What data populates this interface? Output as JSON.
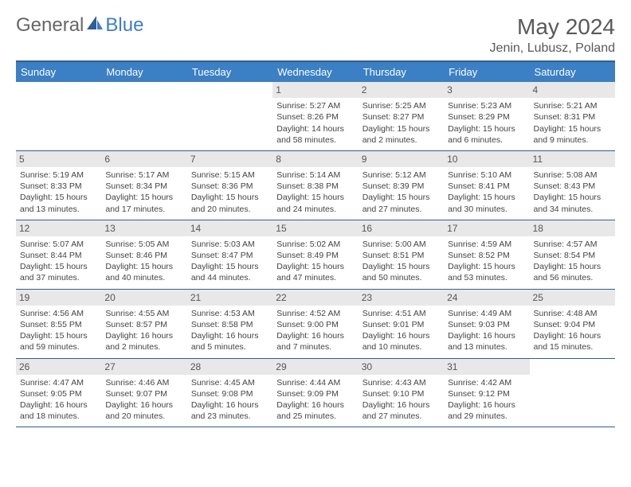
{
  "brand": {
    "part1": "General",
    "part2": "Blue"
  },
  "title": "May 2024",
  "location": "Jenin, Lubusz, Poland",
  "colors": {
    "header_bg": "#3b7fc4",
    "header_border": "#2e5e96",
    "text": "#3a3a3a",
    "daynum_bg": "#e8e8e8"
  },
  "weekdays": [
    "Sunday",
    "Monday",
    "Tuesday",
    "Wednesday",
    "Thursday",
    "Friday",
    "Saturday"
  ],
  "grid": [
    [
      null,
      null,
      null,
      {
        "n": "1",
        "sr": "5:27 AM",
        "ss": "8:26 PM",
        "dl": "14 hours and 58 minutes."
      },
      {
        "n": "2",
        "sr": "5:25 AM",
        "ss": "8:27 PM",
        "dl": "15 hours and 2 minutes."
      },
      {
        "n": "3",
        "sr": "5:23 AM",
        "ss": "8:29 PM",
        "dl": "15 hours and 6 minutes."
      },
      {
        "n": "4",
        "sr": "5:21 AM",
        "ss": "8:31 PM",
        "dl": "15 hours and 9 minutes."
      }
    ],
    [
      {
        "n": "5",
        "sr": "5:19 AM",
        "ss": "8:33 PM",
        "dl": "15 hours and 13 minutes."
      },
      {
        "n": "6",
        "sr": "5:17 AM",
        "ss": "8:34 PM",
        "dl": "15 hours and 17 minutes."
      },
      {
        "n": "7",
        "sr": "5:15 AM",
        "ss": "8:36 PM",
        "dl": "15 hours and 20 minutes."
      },
      {
        "n": "8",
        "sr": "5:14 AM",
        "ss": "8:38 PM",
        "dl": "15 hours and 24 minutes."
      },
      {
        "n": "9",
        "sr": "5:12 AM",
        "ss": "8:39 PM",
        "dl": "15 hours and 27 minutes."
      },
      {
        "n": "10",
        "sr": "5:10 AM",
        "ss": "8:41 PM",
        "dl": "15 hours and 30 minutes."
      },
      {
        "n": "11",
        "sr": "5:08 AM",
        "ss": "8:43 PM",
        "dl": "15 hours and 34 minutes."
      }
    ],
    [
      {
        "n": "12",
        "sr": "5:07 AM",
        "ss": "8:44 PM",
        "dl": "15 hours and 37 minutes."
      },
      {
        "n": "13",
        "sr": "5:05 AM",
        "ss": "8:46 PM",
        "dl": "15 hours and 40 minutes."
      },
      {
        "n": "14",
        "sr": "5:03 AM",
        "ss": "8:47 PM",
        "dl": "15 hours and 44 minutes."
      },
      {
        "n": "15",
        "sr": "5:02 AM",
        "ss": "8:49 PM",
        "dl": "15 hours and 47 minutes."
      },
      {
        "n": "16",
        "sr": "5:00 AM",
        "ss": "8:51 PM",
        "dl": "15 hours and 50 minutes."
      },
      {
        "n": "17",
        "sr": "4:59 AM",
        "ss": "8:52 PM",
        "dl": "15 hours and 53 minutes."
      },
      {
        "n": "18",
        "sr": "4:57 AM",
        "ss": "8:54 PM",
        "dl": "15 hours and 56 minutes."
      }
    ],
    [
      {
        "n": "19",
        "sr": "4:56 AM",
        "ss": "8:55 PM",
        "dl": "15 hours and 59 minutes."
      },
      {
        "n": "20",
        "sr": "4:55 AM",
        "ss": "8:57 PM",
        "dl": "16 hours and 2 minutes."
      },
      {
        "n": "21",
        "sr": "4:53 AM",
        "ss": "8:58 PM",
        "dl": "16 hours and 5 minutes."
      },
      {
        "n": "22",
        "sr": "4:52 AM",
        "ss": "9:00 PM",
        "dl": "16 hours and 7 minutes."
      },
      {
        "n": "23",
        "sr": "4:51 AM",
        "ss": "9:01 PM",
        "dl": "16 hours and 10 minutes."
      },
      {
        "n": "24",
        "sr": "4:49 AM",
        "ss": "9:03 PM",
        "dl": "16 hours and 13 minutes."
      },
      {
        "n": "25",
        "sr": "4:48 AM",
        "ss": "9:04 PM",
        "dl": "16 hours and 15 minutes."
      }
    ],
    [
      {
        "n": "26",
        "sr": "4:47 AM",
        "ss": "9:05 PM",
        "dl": "16 hours and 18 minutes."
      },
      {
        "n": "27",
        "sr": "4:46 AM",
        "ss": "9:07 PM",
        "dl": "16 hours and 20 minutes."
      },
      {
        "n": "28",
        "sr": "4:45 AM",
        "ss": "9:08 PM",
        "dl": "16 hours and 23 minutes."
      },
      {
        "n": "29",
        "sr": "4:44 AM",
        "ss": "9:09 PM",
        "dl": "16 hours and 25 minutes."
      },
      {
        "n": "30",
        "sr": "4:43 AM",
        "ss": "9:10 PM",
        "dl": "16 hours and 27 minutes."
      },
      {
        "n": "31",
        "sr": "4:42 AM",
        "ss": "9:12 PM",
        "dl": "16 hours and 29 minutes."
      },
      null
    ]
  ],
  "labels": {
    "sunrise": "Sunrise:",
    "sunset": "Sunset:",
    "daylight": "Daylight:"
  }
}
